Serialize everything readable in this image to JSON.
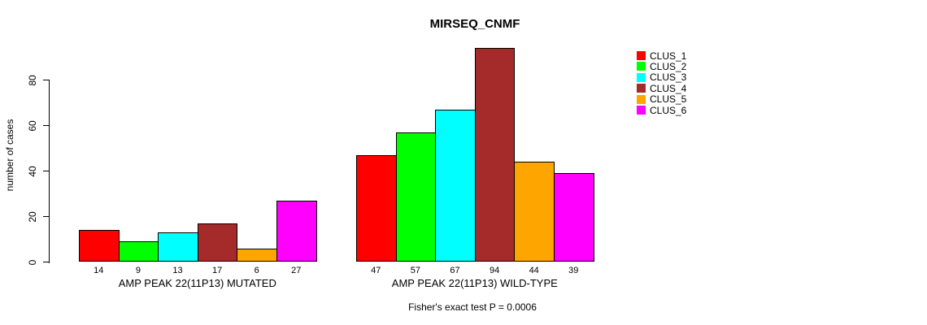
{
  "title": "MIRSEQ_CNMF",
  "footer_note": "Fisher's exact test P = 0.0006",
  "chart_data": {
    "type": "bar",
    "title": "MIRSEQ_CNMF",
    "xlabel": "",
    "ylabel": "number of cases",
    "ylim": [
      0,
      94
    ],
    "yticks": [
      0,
      20,
      40,
      60,
      80
    ],
    "grid": false,
    "legend_position": "right-outside",
    "background_color": "#ffffff",
    "bar_outline_color": "#000000",
    "legend": [
      {
        "label": "CLUS_1",
        "color": "#FF0000"
      },
      {
        "label": "CLUS_2",
        "color": "#00FF00"
      },
      {
        "label": "CLUS_3",
        "color": "#00FFFF"
      },
      {
        "label": "CLUS_4",
        "color": "#A52A2A"
      },
      {
        "label": "CLUS_5",
        "color": "#FFA500"
      },
      {
        "label": "CLUS_6",
        "color": "#FF00FF"
      }
    ],
    "groups": [
      {
        "label": "AMP PEAK 22(11P13) MUTATED",
        "series": [
          "CLUS_1",
          "CLUS_2",
          "CLUS_3",
          "CLUS_4",
          "CLUS_5",
          "CLUS_6"
        ],
        "values": [
          14,
          9,
          13,
          17,
          6,
          27
        ]
      },
      {
        "label": "AMP PEAK 22(11P13) WILD-TYPE",
        "series": [
          "CLUS_1",
          "CLUS_2",
          "CLUS_3",
          "CLUS_4",
          "CLUS_5",
          "CLUS_6"
        ],
        "values": [
          47,
          57,
          67,
          94,
          44,
          39
        ]
      }
    ],
    "annotation": "Fisher's exact test P = 0.0006"
  }
}
